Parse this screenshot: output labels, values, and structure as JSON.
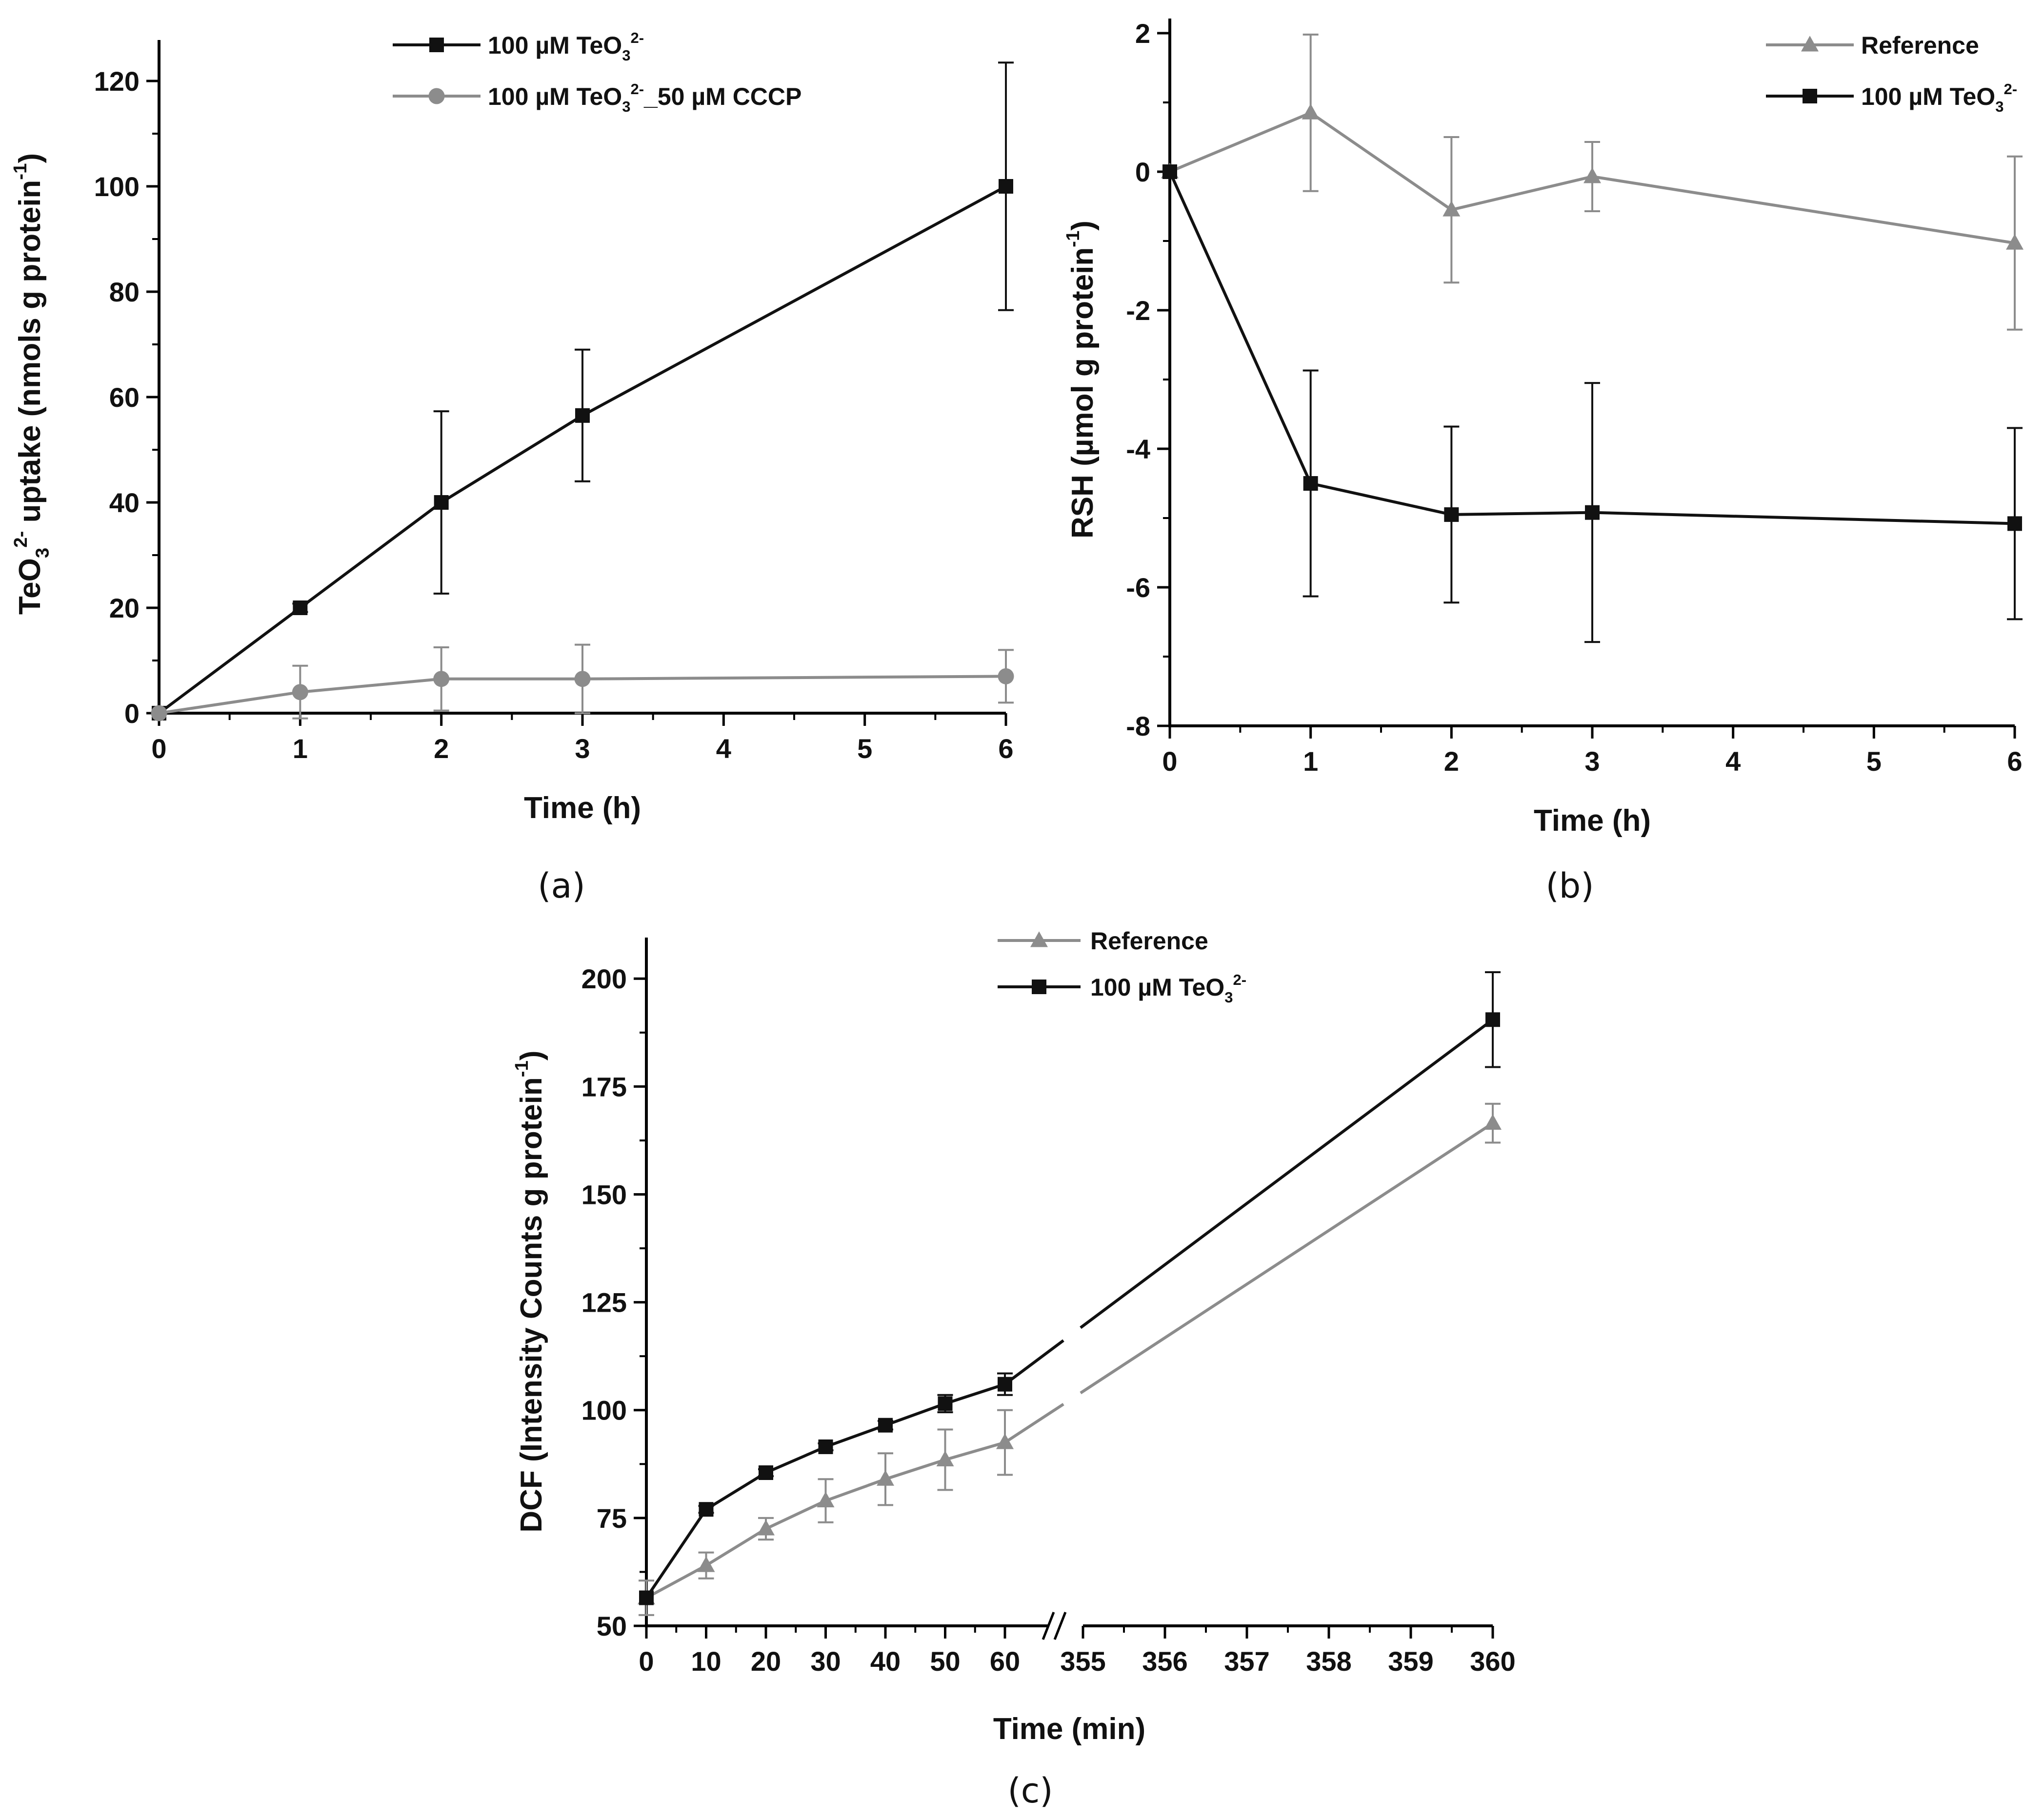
{
  "colors": {
    "series_black": "#111111",
    "series_gray": "#8c8c8c",
    "axis": "#000000"
  },
  "chart_data": [
    {
      "panel": "(a)",
      "type": "line",
      "xlabel": "Time (h)",
      "ylabel_parts": [
        "TeO",
        "3",
        "2-",
        " uptake (nmols g protein",
        "-1",
        ")"
      ],
      "x": [
        0,
        1,
        2,
        3,
        6
      ],
      "xlim": [
        0,
        6
      ],
      "xticks": [
        0,
        1,
        2,
        3,
        4,
        5,
        6
      ],
      "ylim": [
        0,
        125
      ],
      "yticks": [
        0,
        20,
        40,
        60,
        80,
        100,
        120
      ],
      "legend_position": "top-center",
      "series": [
        {
          "name_parts": [
            "100 µM TeO",
            "3",
            "2-",
            ""
          ],
          "marker": "square",
          "color": "#111111",
          "values": [
            0,
            20,
            40,
            56.5,
            100
          ],
          "errors": [
            0,
            0.8,
            17.3,
            12.5,
            23.5
          ]
        },
        {
          "name_parts": [
            "100 µM TeO",
            "3",
            "2-",
            "_50 µM CCCP"
          ],
          "marker": "circle",
          "color": "#8c8c8c",
          "values": [
            0,
            4,
            6.5,
            6.5,
            7
          ],
          "errors": [
            0,
            5,
            6,
            6.5,
            5
          ]
        }
      ]
    },
    {
      "panel": "(b)",
      "type": "line",
      "xlabel": "Time (h)",
      "ylabel_parts": [
        "RSH (µmol g protein",
        "-1",
        ")"
      ],
      "x": [
        0,
        1,
        2,
        3,
        6
      ],
      "xlim": [
        0,
        6
      ],
      "xticks": [
        0,
        1,
        2,
        3,
        4,
        5,
        6
      ],
      "ylim": [
        -8,
        2
      ],
      "yticks": [
        -8,
        -6,
        -4,
        -2,
        0,
        2
      ],
      "legend_position": "top-right",
      "series": [
        {
          "name_parts": [
            "Reference",
            "",
            "",
            ""
          ],
          "marker": "triangle",
          "color": "#8c8c8c",
          "values": [
            0,
            0.85,
            -0.55,
            -0.07,
            -1.03
          ],
          "errors": [
            0,
            1.13,
            1.05,
            0.5,
            1.25
          ]
        },
        {
          "name_parts": [
            "100 µM TeO",
            "3",
            "2-",
            ""
          ],
          "marker": "square",
          "color": "#111111",
          "values": [
            0,
            -4.5,
            -4.95,
            -4.92,
            -5.08
          ],
          "errors": [
            0,
            1.63,
            1.27,
            1.87,
            1.38
          ]
        }
      ]
    },
    {
      "panel": "(c)",
      "type": "line",
      "xlabel": "Time (min)",
      "ylabel_parts": [
        "DCF (Intensity Counts g protein",
        "-1",
        ")"
      ],
      "x": [
        0,
        10,
        20,
        30,
        40,
        50,
        60,
        360
      ],
      "axis_break": {
        "left_range": [
          0,
          60
        ],
        "right_range": [
          355,
          360
        ]
      },
      "xticks": [
        0,
        10,
        20,
        30,
        40,
        50,
        60,
        355,
        356,
        357,
        358,
        359,
        360
      ],
      "ylim": [
        50,
        205
      ],
      "yticks": [
        50,
        75,
        100,
        125,
        150,
        175,
        200
      ],
      "legend_position": "top-left",
      "series": [
        {
          "name_parts": [
            "Reference",
            "",
            "",
            ""
          ],
          "marker": "triangle",
          "color": "#8c8c8c",
          "values": [
            56.5,
            64,
            72.5,
            79,
            84,
            88.5,
            92.5,
            166.5
          ],
          "errors": [
            4,
            3,
            2.5,
            5,
            6,
            7,
            7.5,
            4.5
          ]
        },
        {
          "name_parts": [
            "100 µM TeO",
            "3",
            "2-",
            ""
          ],
          "marker": "square",
          "color": "#111111",
          "values": [
            56.5,
            77,
            85.5,
            91.5,
            96.5,
            101.5,
            106,
            190.5
          ],
          "errors": [
            0,
            0.8,
            0.8,
            0.8,
            1,
            2,
            2.5,
            11
          ]
        }
      ]
    }
  ]
}
